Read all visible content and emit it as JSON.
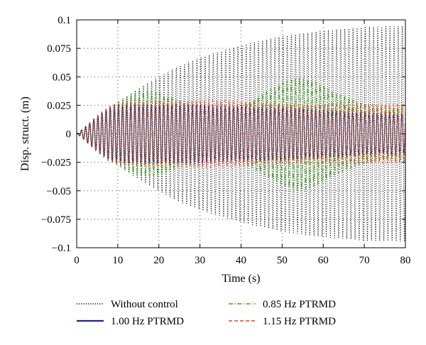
{
  "chart_data": {
    "type": "line",
    "title": "",
    "xlabel": "Time (s)",
    "ylabel": "Disp. struct. (m)",
    "xlim": [
      0,
      80
    ],
    "ylim": [
      -0.1,
      0.1
    ],
    "grid": true,
    "legend_position": "bottom",
    "x_ticks": [
      "0",
      "10",
      "20",
      "30",
      "40",
      "50",
      "60",
      "70",
      "80"
    ],
    "y_ticks": [
      "0.1",
      "0.075",
      "0.05",
      "0.025",
      "0",
      "−0.025",
      "−0.05",
      "−0.075",
      "−0.1"
    ],
    "series": [
      {
        "name": "Without control",
        "color": "#000000",
        "style": "dotted",
        "oscillation_frequency_hz": 1.0,
        "envelope": {
          "t": [
            0,
            2,
            5,
            10,
            15,
            20,
            25,
            30,
            40,
            50,
            60,
            70,
            80
          ],
          "amp": [
            0,
            0.006,
            0.015,
            0.028,
            0.04,
            0.05,
            0.06,
            0.067,
            0.078,
            0.086,
            0.091,
            0.094,
            0.095
          ]
        }
      },
      {
        "name": "0.85 Hz PTRMD",
        "color": "#39a318",
        "style": "dashdot",
        "oscillation_frequency_hz": 1.0,
        "envelope": {
          "t": [
            0,
            2,
            5,
            10,
            15,
            18,
            22,
            27,
            33,
            40,
            45,
            50,
            54,
            58,
            63,
            70,
            75,
            80
          ],
          "amp": [
            0,
            0.006,
            0.015,
            0.028,
            0.037,
            0.038,
            0.034,
            0.026,
            0.021,
            0.025,
            0.035,
            0.045,
            0.05,
            0.046,
            0.036,
            0.026,
            0.022,
            0.024
          ]
        }
      },
      {
        "name": "1.00 Hz PTRMD",
        "color": "#1f1f9a",
        "style": "solid",
        "oscillation_frequency_hz": 1.0,
        "envelope": {
          "t": [
            0,
            2,
            5,
            8,
            12,
            20,
            30,
            40,
            50,
            60,
            70,
            80
          ],
          "amp": [
            0,
            0.006,
            0.016,
            0.024,
            0.026,
            0.026,
            0.026,
            0.024,
            0.023,
            0.021,
            0.018,
            0.017
          ]
        }
      },
      {
        "name": "1.15 Hz PTRMD",
        "color": "#e2441c",
        "style": "dashed",
        "oscillation_frequency_hz": 1.0,
        "envelope": {
          "t": [
            0,
            2,
            5,
            8,
            12,
            20,
            30,
            40,
            50,
            60,
            70,
            80
          ],
          "amp": [
            0,
            0.006,
            0.016,
            0.025,
            0.028,
            0.029,
            0.03,
            0.029,
            0.027,
            0.026,
            0.026,
            0.026
          ]
        }
      }
    ]
  }
}
